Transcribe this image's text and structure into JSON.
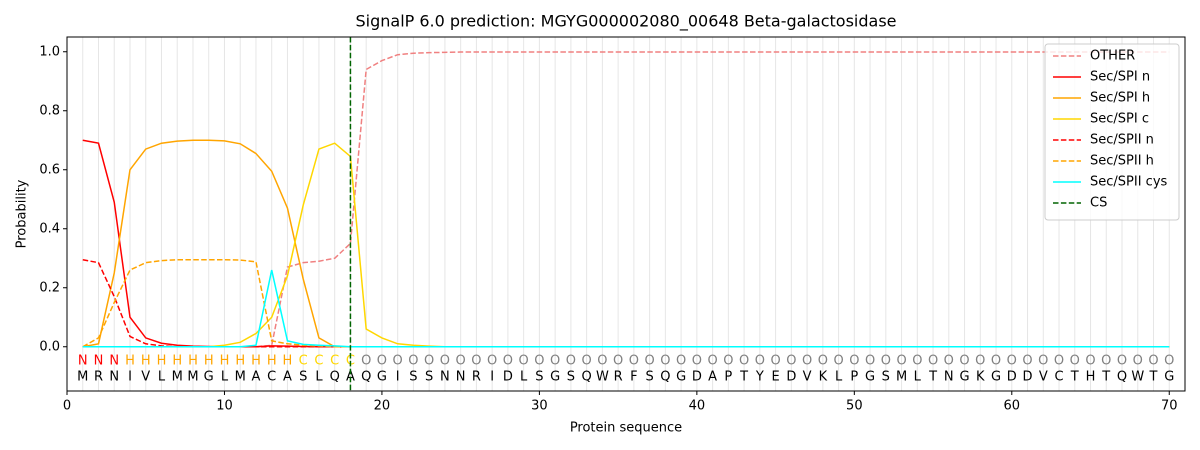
{
  "chart_data": {
    "type": "line",
    "title": "SignalP 6.0 prediction: MGYG000002080_00648 Beta-galactosidase",
    "xlabel": "Protein sequence",
    "ylabel": "Probability",
    "xlim": [
      0,
      71
    ],
    "ylim": [
      -0.15,
      1.05
    ],
    "xticks": [
      0,
      10,
      20,
      30,
      40,
      50,
      60,
      70
    ],
    "yticks": [
      {
        "value": 0,
        "label": "0.0"
      },
      {
        "value": 0.2,
        "label": "0.2"
      },
      {
        "value": 0.4,
        "label": "0.4"
      },
      {
        "value": 0.6,
        "label": "0.6"
      },
      {
        "value": 0.8,
        "label": "0.8"
      },
      {
        "value": 1.0,
        "label": "1.0"
      }
    ],
    "x": [
      1,
      2,
      3,
      4,
      5,
      6,
      7,
      8,
      9,
      10,
      11,
      12,
      13,
      14,
      15,
      16,
      17,
      18,
      19,
      20,
      21,
      22,
      23,
      24,
      25,
      26,
      27,
      28,
      29,
      30,
      31,
      32,
      33,
      34,
      35,
      36,
      37,
      38,
      39,
      40,
      41,
      42,
      43,
      44,
      45,
      46,
      47,
      48,
      49,
      50,
      51,
      52,
      53,
      54,
      55,
      56,
      57,
      58,
      59,
      60,
      61,
      62,
      63,
      64,
      65,
      66,
      67,
      68,
      69,
      70
    ],
    "sequence": [
      "M",
      "R",
      "N",
      "I",
      "V",
      "L",
      "M",
      "M",
      "G",
      "L",
      "M",
      "A",
      "C",
      "A",
      "S",
      "L",
      "Q",
      "A",
      "Q",
      "G",
      "I",
      "S",
      "S",
      "N",
      "N",
      "R",
      "I",
      "D",
      "L",
      "S",
      "G",
      "S",
      "Q",
      "W",
      "R",
      "F",
      "S",
      "Q",
      "G",
      "D",
      "A",
      "P",
      "T",
      "Y",
      "E",
      "D",
      "V",
      "K",
      "L",
      "P",
      "G",
      "S",
      "M",
      "L",
      "T",
      "N",
      "G",
      "K",
      "G",
      "D",
      "D",
      "V",
      "C",
      "T",
      "H",
      "T",
      "Q",
      "W",
      "T",
      "G"
    ],
    "residue_labels": [
      "N",
      "N",
      "N",
      "H",
      "H",
      "H",
      "H",
      "H",
      "H",
      "H",
      "H",
      "H",
      "H",
      "H",
      "C",
      "C",
      "C",
      "C",
      "O",
      "O",
      "O",
      "O",
      "O",
      "O",
      "O",
      "O",
      "O",
      "O",
      "O",
      "O",
      "O",
      "O",
      "O",
      "O",
      "O",
      "O",
      "O",
      "O",
      "O",
      "O",
      "O",
      "O",
      "O",
      "O",
      "O",
      "O",
      "O",
      "O",
      "O",
      "O",
      "O",
      "O",
      "O",
      "O",
      "O",
      "O",
      "O",
      "O",
      "O",
      "O",
      "O",
      "O",
      "O",
      "O",
      "O",
      "O",
      "O",
      "O",
      "O",
      "O"
    ],
    "label_colors": {
      "N": "#ff0000",
      "H": "#ffa500",
      "C": "#ffd700",
      "O": "#808080"
    },
    "legend": "upper right",
    "series": [
      {
        "name": "OTHER",
        "color": "#f08080",
        "dashed": true,
        "values": [
          0,
          0,
          0,
          0,
          0,
          0,
          0,
          0,
          0,
          0,
          0,
          0,
          0.005,
          0.27,
          0.285,
          0.29,
          0.3,
          0.35,
          0.94,
          0.97,
          0.99,
          0.995,
          0.997,
          0.998,
          0.999,
          0.999,
          0.999,
          0.999,
          0.999,
          0.999,
          0.999,
          0.999,
          0.999,
          0.999,
          0.999,
          0.999,
          0.999,
          0.999,
          0.999,
          0.999,
          0.999,
          0.999,
          0.999,
          0.999,
          0.999,
          0.999,
          0.999,
          0.999,
          0.999,
          0.999,
          0.999,
          0.999,
          0.999,
          0.999,
          0.999,
          0.999,
          0.999,
          0.999,
          0.999,
          0.999,
          0.999,
          0.999,
          0.999,
          0.999,
          0.999,
          0.999,
          0.999,
          0.999,
          0.999,
          0.999
        ]
      },
      {
        "name": "Sec/SPI n",
        "color": "#ff0000",
        "dashed": false,
        "values": [
          0.7,
          0.69,
          0.49,
          0.1,
          0.03,
          0.012,
          0.005,
          0.002,
          0.001,
          0,
          0,
          0,
          0.003,
          0.002,
          0.001,
          0,
          0,
          0,
          0,
          0,
          0,
          0,
          0,
          0,
          0,
          0,
          0,
          0,
          0,
          0,
          0,
          0,
          0,
          0,
          0,
          0,
          0,
          0,
          0,
          0,
          0,
          0,
          0,
          0,
          0,
          0,
          0,
          0,
          0,
          0,
          0,
          0,
          0,
          0,
          0,
          0,
          0,
          0,
          0,
          0,
          0,
          0,
          0,
          0,
          0,
          0,
          0,
          0,
          0,
          0
        ]
      },
      {
        "name": "Sec/SPI h",
        "color": "#ffa500",
        "dashed": false,
        "values": [
          0,
          0.01,
          0.25,
          0.6,
          0.67,
          0.69,
          0.697,
          0.7,
          0.7,
          0.698,
          0.688,
          0.655,
          0.595,
          0.47,
          0.23,
          0.03,
          0,
          0,
          0,
          0,
          0,
          0,
          0,
          0,
          0,
          0,
          0,
          0,
          0,
          0,
          0,
          0,
          0,
          0,
          0,
          0,
          0,
          0,
          0,
          0,
          0,
          0,
          0,
          0,
          0,
          0,
          0,
          0,
          0,
          0,
          0,
          0,
          0,
          0,
          0,
          0,
          0,
          0,
          0,
          0,
          0,
          0,
          0,
          0,
          0,
          0,
          0,
          0,
          0,
          0
        ]
      },
      {
        "name": "Sec/SPI c",
        "color": "#ffd700",
        "dashed": false,
        "values": [
          0,
          0,
          0,
          0,
          0,
          0,
          0,
          0,
          0,
          0.005,
          0.015,
          0.045,
          0.1,
          0.24,
          0.48,
          0.67,
          0.69,
          0.645,
          0.06,
          0.03,
          0.01,
          0.005,
          0.002,
          0,
          0,
          0,
          0,
          0,
          0,
          0,
          0,
          0,
          0,
          0,
          0,
          0,
          0,
          0,
          0,
          0,
          0,
          0,
          0,
          0,
          0,
          0,
          0,
          0,
          0,
          0,
          0,
          0,
          0,
          0,
          0,
          0,
          0,
          0,
          0,
          0,
          0,
          0,
          0,
          0,
          0,
          0,
          0,
          0,
          0,
          0
        ]
      },
      {
        "name": "Sec/SPII n",
        "color": "#ff0000",
        "dashed": true,
        "values": [
          0.295,
          0.285,
          0.17,
          0.035,
          0.01,
          0.003,
          0,
          0,
          0,
          0,
          0,
          0,
          0,
          0,
          0,
          0,
          0,
          0,
          0,
          0,
          0,
          0,
          0,
          0,
          0,
          0,
          0,
          0,
          0,
          0,
          0,
          0,
          0,
          0,
          0,
          0,
          0,
          0,
          0,
          0,
          0,
          0,
          0,
          0,
          0,
          0,
          0,
          0,
          0,
          0,
          0,
          0,
          0,
          0,
          0,
          0,
          0,
          0,
          0,
          0,
          0,
          0,
          0,
          0,
          0,
          0,
          0,
          0,
          0,
          0
        ]
      },
      {
        "name": "Sec/SPII h",
        "color": "#ffa500",
        "dashed": true,
        "values": [
          0,
          0.03,
          0.15,
          0.26,
          0.285,
          0.292,
          0.295,
          0.295,
          0.295,
          0.295,
          0.294,
          0.288,
          0.02,
          0.01,
          0.005,
          0.003,
          0,
          0,
          0,
          0,
          0,
          0,
          0,
          0,
          0,
          0,
          0,
          0,
          0,
          0,
          0,
          0,
          0,
          0,
          0,
          0,
          0,
          0,
          0,
          0,
          0,
          0,
          0,
          0,
          0,
          0,
          0,
          0,
          0,
          0,
          0,
          0,
          0,
          0,
          0,
          0,
          0,
          0,
          0,
          0,
          0,
          0,
          0,
          0,
          0,
          0,
          0,
          0,
          0,
          0
        ]
      },
      {
        "name": "Sec/SPII cys",
        "color": "#00ffff",
        "dashed": false,
        "values": [
          0,
          0,
          0,
          0,
          0,
          0,
          0,
          0,
          0,
          0,
          0,
          0.005,
          0.26,
          0.02,
          0.008,
          0.005,
          0.003,
          0,
          0,
          0,
          0,
          0,
          0,
          0,
          0,
          0,
          0,
          0,
          0,
          0,
          0,
          0,
          0,
          0,
          0,
          0,
          0,
          0,
          0,
          0,
          0,
          0,
          0,
          0,
          0,
          0,
          0,
          0,
          0,
          0,
          0,
          0,
          0,
          0,
          0,
          0,
          0,
          0,
          0,
          0,
          0,
          0,
          0,
          0,
          0,
          0,
          0,
          0,
          0,
          0
        ]
      }
    ],
    "cs": {
      "name": "CS",
      "color": "#006400",
      "x": 18
    }
  }
}
